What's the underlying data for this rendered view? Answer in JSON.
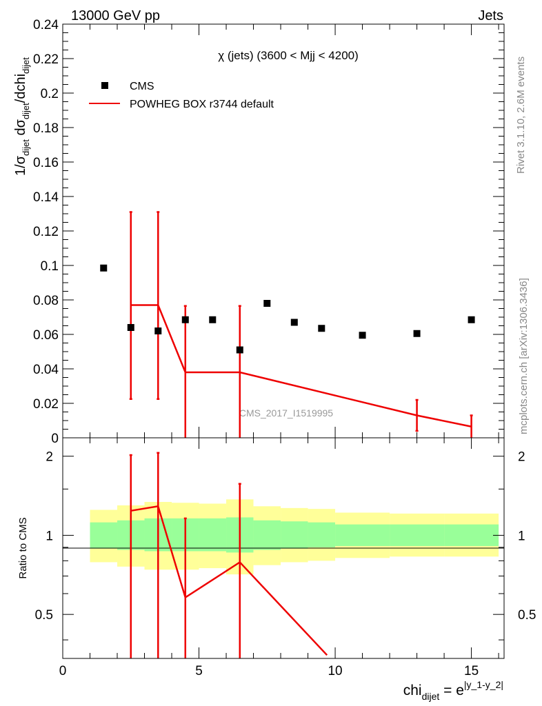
{
  "header": {
    "left": "13000 GeV pp",
    "right": "Jets"
  },
  "side": {
    "rivet": "Rivet 3.1.10,  2.6M events",
    "mcplots": "mcplots.cern.ch [arXiv:1306.3436]"
  },
  "plot_title": "χ (jets) (3600 < Mjj < 4200)",
  "watermark": "CMS_2017_I1519995",
  "ylabel_main": {
    "t1": "1/σ",
    "s1": "dijet",
    "t2": " dσ",
    "s2": "dijet",
    "t3": "/dchi",
    "s3": "dijet"
  },
  "ylabel_ratio": "Ratio to CMS",
  "xlabel": {
    "t1": "chi",
    "s1": "dijet",
    "t2": " = e",
    "sup": "|y_1-y_2|"
  },
  "legend": [
    {
      "label": "CMS",
      "marker": "square",
      "color": "#000000"
    },
    {
      "label": "POWHEG BOX r3744 default",
      "marker": "line",
      "color": "#ee0000"
    }
  ],
  "colors": {
    "data": "#000000",
    "mc": "#ee0000",
    "band_inner": "#99ff99",
    "band_outer": "#ffff99"
  },
  "chart_data": [
    {
      "type": "scatter",
      "panel": "main",
      "xlim": [
        0,
        16.2
      ],
      "ylim": [
        0,
        0.24
      ],
      "yticks": [
        "0",
        "0.02",
        "0.04",
        "0.06",
        "0.08",
        "0.1",
        "0.12",
        "0.14",
        "0.16",
        "0.18",
        "0.2",
        "0.22",
        "0.24"
      ],
      "series": [
        {
          "name": "CMS",
          "kind": "points",
          "x": [
            1.5,
            2.5,
            3.5,
            4.5,
            5.5,
            6.5,
            7.5,
            8.5,
            9.5,
            11,
            13,
            15
          ],
          "y": [
            0.0985,
            0.064,
            0.062,
            0.0685,
            0.0685,
            0.051,
            0.078,
            0.067,
            0.0635,
            0.0595,
            0.0605,
            0.0685
          ]
        },
        {
          "name": "POWHEG BOX r3744 default",
          "kind": "line_with_errors",
          "x": [
            2.5,
            3.5,
            4.5,
            6.5,
            13,
            15
          ],
          "y": [
            0.077,
            0.077,
            0.038,
            0.038,
            0.013,
            0.0065
          ],
          "err_low": [
            0.0545,
            0.0545,
            0.038,
            0.038,
            0.009,
            0.0065
          ],
          "err_high": [
            0.054,
            0.054,
            0.0385,
            0.0385,
            0.009,
            0.0065
          ]
        }
      ]
    },
    {
      "type": "line",
      "panel": "ratio",
      "xlim": [
        0,
        16.2
      ],
      "ylim": [
        0.34,
        2.35
      ],
      "yscale": "log",
      "xticks": [
        "0",
        "5",
        "10",
        "15"
      ],
      "yticks": [
        "0.5",
        "1",
        "2"
      ],
      "series": [
        {
          "name": "POWHEG BOX r3744 default",
          "x": [
            2.5,
            3.5,
            4.5,
            6.5,
            9.7
          ],
          "y": [
            1.24,
            1.29,
            0.58,
            0.79,
            0.35
          ],
          "err_low": [
            1.0,
            1.0,
            0.58,
            0.79,
            0.0
          ],
          "err_high": [
            2.02,
            2.06,
            1.16,
            1.57,
            0.35
          ]
        }
      ],
      "bands": {
        "edges": [
          1,
          2,
          3,
          4,
          5,
          6,
          7,
          8,
          9,
          10,
          12,
          14,
          16
        ],
        "inner_low": [
          0.89,
          0.88,
          0.87,
          0.87,
          0.87,
          0.86,
          0.88,
          0.89,
          0.9,
          0.91,
          0.91,
          0.91
        ],
        "inner_high": [
          1.12,
          1.14,
          1.16,
          1.16,
          1.16,
          1.17,
          1.14,
          1.13,
          1.12,
          1.1,
          1.1,
          1.1
        ],
        "outer_low": [
          0.79,
          0.76,
          0.74,
          0.74,
          0.75,
          0.71,
          0.77,
          0.79,
          0.8,
          0.82,
          0.83,
          0.83
        ],
        "outer_high": [
          1.25,
          1.3,
          1.34,
          1.33,
          1.32,
          1.37,
          1.29,
          1.27,
          1.26,
          1.22,
          1.21,
          1.21
        ]
      }
    }
  ]
}
